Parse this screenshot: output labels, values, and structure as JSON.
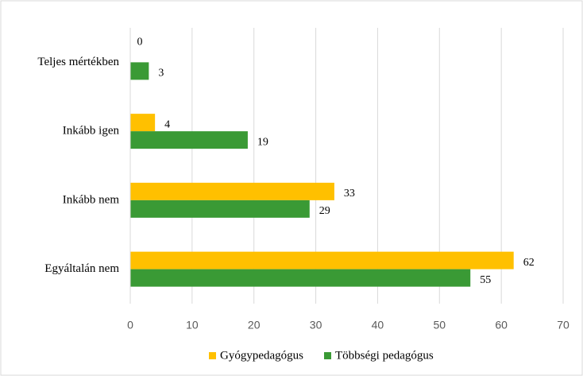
{
  "chart_data": {
    "type": "bar",
    "orientation": "horizontal",
    "categories": [
      "Teljes mértékben",
      "Inkább igen",
      "Inkább nem",
      "Egyáltalán nem"
    ],
    "series": [
      {
        "name": "Gyógypedagógus",
        "color": "#FFC000",
        "values": [
          0,
          4,
          33,
          62
        ]
      },
      {
        "name": "Többségi pedagógus",
        "color": "#3A9A35",
        "values": [
          3,
          19,
          29,
          55
        ]
      }
    ],
    "xlim": [
      0,
      70
    ],
    "xticks": [
      0,
      10,
      20,
      30,
      40,
      50,
      60,
      70
    ],
    "grid": true,
    "legend": "bottom"
  }
}
